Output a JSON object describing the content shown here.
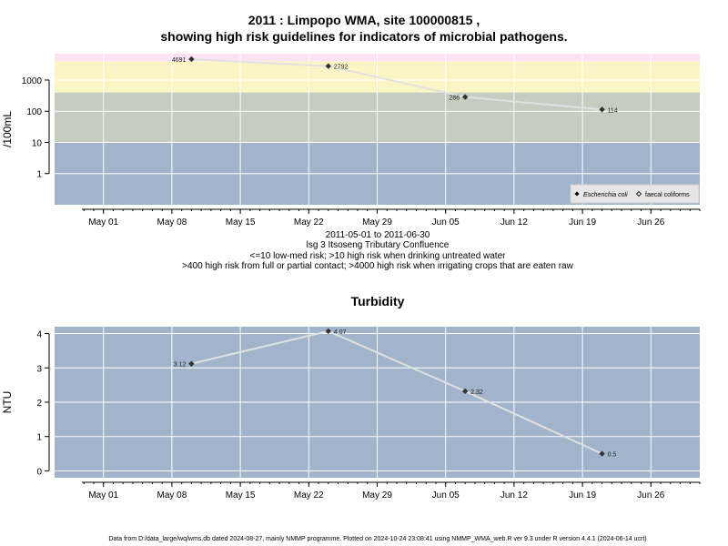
{
  "title_line1": "2011 : Limpopo WMA, site 100000815 ,",
  "title_line2": "showing high risk guidelines for indicators of microbial pathogens.",
  "caption": {
    "range": "2011-05-01 to 2011-06-30",
    "site": "lsg 3 Itsoseng Tributary Confluence",
    "note1": "<=10 low-med risk; >10 high risk when drinking untreated water",
    "note2": ">400 high risk from full or partial contact; >4000 high risk when irrigating crops that are eaten raw"
  },
  "turbidity_title": "Turbidity",
  "footer": "Data from D:/data_large/wq/wms.db dated 2024-08-27, mainly NMMP programme. Plotted on 2024-10-24 23:08:41 using NMMP_WMA_web.R ver 9.3 under R version 4.4.1 (2024-06-14 ucrt)",
  "colors": {
    "band_low": "#a2b4cb",
    "band_drink": "#c4cdc0",
    "band_contact": "#fbf5c5",
    "band_irrigate": "#fce3f2",
    "panel_bg": "#a2b4cb",
    "line": "#e1e1e1",
    "marker": "#333333"
  },
  "chart_data": [
    {
      "type": "line",
      "title": "2011 : Limpopo WMA, site 100000815 , showing high risk guidelines for indicators of microbial pathogens.",
      "ylabel": "/100mL",
      "yscale": "log",
      "yticks": [
        1,
        10,
        100,
        1000
      ],
      "ytick_labels": [
        "1",
        "10",
        "100",
        "1000"
      ],
      "ylim": [
        0.1,
        7000
      ],
      "xlim": [
        "2011-04-26",
        "2011-07-01"
      ],
      "xticks": [
        "2011-05-01",
        "2011-05-08",
        "2011-05-15",
        "2011-05-22",
        "2011-05-29",
        "2011-06-05",
        "2011-06-12",
        "2011-06-19",
        "2011-06-26"
      ],
      "xtick_labels": [
        "May 01",
        "May 08",
        "May 15",
        "May 22",
        "May 29",
        "Jun 05",
        "Jun 12",
        "Jun 19",
        "Jun 26"
      ],
      "thresholds": [
        10,
        400,
        4000
      ],
      "series": [
        {
          "name": "Escherichia coli",
          "x": [
            "2011-05-10",
            "2011-05-24",
            "2011-06-07",
            "2011-06-21"
          ],
          "y": [
            4691,
            2792,
            286,
            114
          ],
          "labels": [
            "4691",
            "2792",
            "286",
            "114"
          ]
        }
      ],
      "legend": {
        "position": "bottom-right",
        "entries": [
          "Escherichia coli",
          "faecal coliforms"
        ]
      },
      "grid": true
    },
    {
      "type": "line",
      "title": "Turbidity",
      "ylabel": "NTU",
      "yticks": [
        0,
        1,
        2,
        3,
        4
      ],
      "ytick_labels": [
        "0",
        "1",
        "2",
        "3",
        "4"
      ],
      "ylim": [
        -0.2,
        4.2
      ],
      "xlim": [
        "2011-04-26",
        "2011-07-01"
      ],
      "xticks": [
        "2011-05-01",
        "2011-05-08",
        "2011-05-15",
        "2011-05-22",
        "2011-05-29",
        "2011-06-05",
        "2011-06-12",
        "2011-06-19",
        "2011-06-26"
      ],
      "xtick_labels": [
        "May 01",
        "May 08",
        "May 15",
        "May 22",
        "May 29",
        "Jun 05",
        "Jun 12",
        "Jun 19",
        "Jun 26"
      ],
      "series": [
        {
          "x": [
            "2011-05-10",
            "2011-05-24",
            "2011-06-07",
            "2011-06-21"
          ],
          "y": [
            3.12,
            4.07,
            2.32,
            0.5
          ],
          "labels": [
            "3.12",
            "4.07",
            "2.32",
            "0.5"
          ]
        }
      ],
      "grid": true
    }
  ]
}
